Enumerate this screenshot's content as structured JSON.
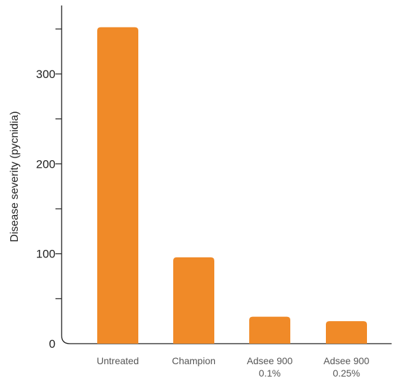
{
  "chart_data": {
    "type": "bar",
    "categories": [
      [
        "Untreated"
      ],
      [
        "Champion"
      ],
      [
        "Adsee 900",
        "0.1%"
      ],
      [
        "Adsee 900",
        "0.25%"
      ]
    ],
    "values": [
      352,
      96,
      30,
      25
    ],
    "ylabel": "Disease severity (pycnidia)",
    "ylim": [
      0,
      370
    ],
    "yticks": [
      0,
      100,
      200,
      300
    ],
    "ytick_labels": [
      "0",
      "100",
      "200",
      "300"
    ],
    "grid": false,
    "bar_color": "#F08A28",
    "axis_color": "#1a1a1a"
  }
}
